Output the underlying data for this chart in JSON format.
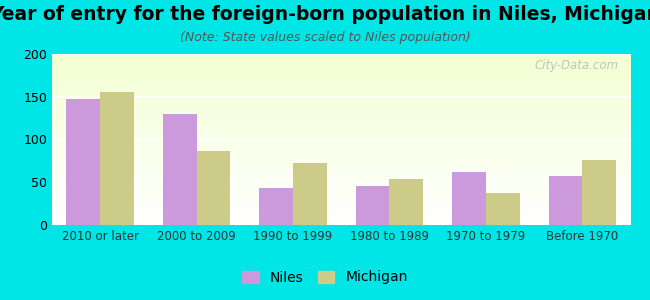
{
  "title": "Year of entry for the foreign-born population in Niles, Michigan",
  "subtitle": "(Note: State values scaled to Niles population)",
  "categories": [
    "2010 or later",
    "2000 to 2009",
    "1990 to 1999",
    "1980 to 1989",
    "1970 to 1979",
    "Before 1970"
  ],
  "niles_values": [
    147,
    130,
    43,
    46,
    62,
    57
  ],
  "michigan_values": [
    155,
    86,
    72,
    54,
    38,
    76
  ],
  "niles_color": "#cc99dd",
  "michigan_color": "#cccc88",
  "background_color": "#00e5e5",
  "ylim": [
    0,
    200
  ],
  "yticks": [
    0,
    50,
    100,
    150,
    200
  ],
  "bar_width": 0.35,
  "title_fontsize": 13.5,
  "subtitle_fontsize": 9,
  "legend_labels": [
    "Niles",
    "Michigan"
  ],
  "watermark": "City-Data.com"
}
